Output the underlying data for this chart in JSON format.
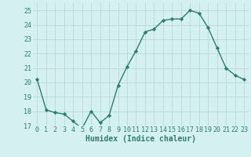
{
  "x": [
    0,
    1,
    2,
    3,
    4,
    5,
    6,
    7,
    8,
    9,
    10,
    11,
    12,
    13,
    14,
    15,
    16,
    17,
    18,
    19,
    20,
    21,
    22,
    23
  ],
  "y": [
    20.2,
    18.1,
    17.9,
    17.8,
    17.3,
    16.8,
    18.0,
    17.2,
    17.7,
    19.8,
    21.1,
    22.2,
    23.5,
    23.7,
    24.3,
    24.4,
    24.4,
    25.0,
    24.8,
    23.8,
    22.4,
    21.0,
    20.5,
    20.2
  ],
  "line_color": "#2e7d6e",
  "marker": "D",
  "marker_size": 2.2,
  "bg_color": "#d4f0f0",
  "grid_color": "#b8d8d8",
  "xlabel": "Humidex (Indice chaleur)",
  "xlim": [
    -0.5,
    23.5
  ],
  "ylim": [
    17,
    25.5
  ],
  "yticks": [
    17,
    18,
    19,
    20,
    21,
    22,
    23,
    24,
    25
  ],
  "xtick_labels": [
    "0",
    "1",
    "2",
    "3",
    "4",
    "5",
    "6",
    "7",
    "8",
    "9",
    "10",
    "11",
    "12",
    "13",
    "14",
    "15",
    "16",
    "17",
    "18",
    "19",
    "20",
    "21",
    "22",
    "23"
  ],
  "tick_color": "#2e7d6e",
  "label_fontsize": 7.0,
  "tick_fontsize": 6.0,
  "linewidth": 1.0
}
